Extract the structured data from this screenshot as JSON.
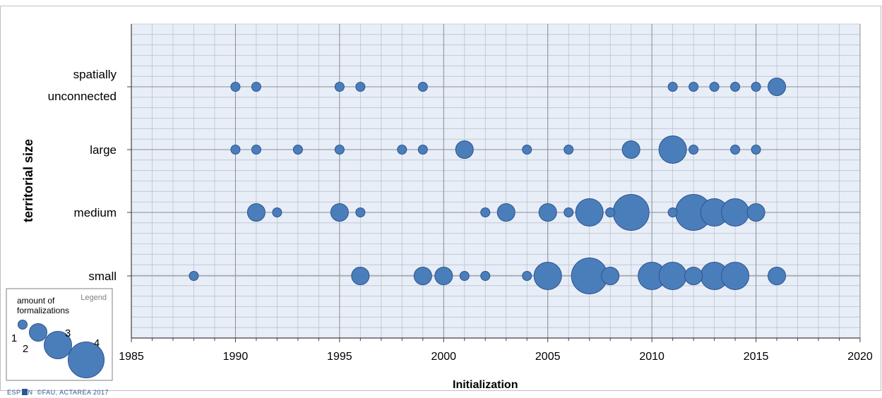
{
  "chart_data": {
    "type": "scatter",
    "subtype": "bubble",
    "xlabel": "Initialization",
    "ylabel": "territorial size",
    "xlim": [
      1985,
      2020
    ],
    "xticks": [
      1985,
      1990,
      1995,
      2000,
      2005,
      2010,
      2015,
      2020
    ],
    "grid": true,
    "categories": [
      "small",
      "medium",
      "large",
      "spatially unconnected"
    ],
    "category_labels": [
      [
        "small"
      ],
      [
        "medium"
      ],
      [
        "large"
      ],
      [
        "spatially",
        "unconnected"
      ]
    ],
    "points": [
      {
        "category": "spatially unconnected",
        "x": 1990,
        "size": 1
      },
      {
        "category": "spatially unconnected",
        "x": 1991,
        "size": 1
      },
      {
        "category": "spatially unconnected",
        "x": 1995,
        "size": 1
      },
      {
        "category": "spatially unconnected",
        "x": 1996,
        "size": 1
      },
      {
        "category": "spatially unconnected",
        "x": 1999,
        "size": 1
      },
      {
        "category": "spatially unconnected",
        "x": 2011,
        "size": 1
      },
      {
        "category": "spatially unconnected",
        "x": 2012,
        "size": 1
      },
      {
        "category": "spatially unconnected",
        "x": 2013,
        "size": 1
      },
      {
        "category": "spatially unconnected",
        "x": 2014,
        "size": 1
      },
      {
        "category": "spatially unconnected",
        "x": 2015,
        "size": 1
      },
      {
        "category": "spatially unconnected",
        "x": 2016,
        "size": 2
      },
      {
        "category": "large",
        "x": 1990,
        "size": 1
      },
      {
        "category": "large",
        "x": 1991,
        "size": 1
      },
      {
        "category": "large",
        "x": 1993,
        "size": 1
      },
      {
        "category": "large",
        "x": 1995,
        "size": 1
      },
      {
        "category": "large",
        "x": 1998,
        "size": 1
      },
      {
        "category": "large",
        "x": 1999,
        "size": 1
      },
      {
        "category": "large",
        "x": 2001,
        "size": 2
      },
      {
        "category": "large",
        "x": 2004,
        "size": 1
      },
      {
        "category": "large",
        "x": 2006,
        "size": 1
      },
      {
        "category": "large",
        "x": 2009,
        "size": 2
      },
      {
        "category": "large",
        "x": 2011,
        "size": 3
      },
      {
        "category": "large",
        "x": 2012,
        "size": 1
      },
      {
        "category": "large",
        "x": 2014,
        "size": 1
      },
      {
        "category": "large",
        "x": 2015,
        "size": 1
      },
      {
        "category": "medium",
        "x": 1991,
        "size": 2
      },
      {
        "category": "medium",
        "x": 1992,
        "size": 1
      },
      {
        "category": "medium",
        "x": 1995,
        "size": 2
      },
      {
        "category": "medium",
        "x": 1996,
        "size": 1
      },
      {
        "category": "medium",
        "x": 2002,
        "size": 1
      },
      {
        "category": "medium",
        "x": 2003,
        "size": 2
      },
      {
        "category": "medium",
        "x": 2005,
        "size": 2
      },
      {
        "category": "medium",
        "x": 2006,
        "size": 1
      },
      {
        "category": "medium",
        "x": 2007,
        "size": 3
      },
      {
        "category": "medium",
        "x": 2008,
        "size": 1
      },
      {
        "category": "medium",
        "x": 2009,
        "size": 4
      },
      {
        "category": "medium",
        "x": 2011,
        "size": 1
      },
      {
        "category": "medium",
        "x": 2012,
        "size": 4
      },
      {
        "category": "medium",
        "x": 2013,
        "size": 3
      },
      {
        "category": "medium",
        "x": 2014,
        "size": 3
      },
      {
        "category": "medium",
        "x": 2015,
        "size": 2
      },
      {
        "category": "small",
        "x": 1988,
        "size": 1
      },
      {
        "category": "small",
        "x": 1996,
        "size": 2
      },
      {
        "category": "small",
        "x": 1999,
        "size": 2
      },
      {
        "category": "small",
        "x": 2000,
        "size": 2
      },
      {
        "category": "small",
        "x": 2001,
        "size": 1
      },
      {
        "category": "small",
        "x": 2002,
        "size": 1
      },
      {
        "category": "small",
        "x": 2004,
        "size": 1
      },
      {
        "category": "small",
        "x": 2005,
        "size": 3
      },
      {
        "category": "small",
        "x": 2007,
        "size": 4
      },
      {
        "category": "small",
        "x": 2008,
        "size": 2
      },
      {
        "category": "small",
        "x": 2010,
        "size": 3
      },
      {
        "category": "small",
        "x": 2011,
        "size": 3
      },
      {
        "category": "small",
        "x": 2012,
        "size": 2
      },
      {
        "category": "small",
        "x": 2013,
        "size": 3
      },
      {
        "category": "small",
        "x": 2014,
        "size": 3
      },
      {
        "category": "small",
        "x": 2016,
        "size": 2
      }
    ],
    "legend": {
      "title": "Legend",
      "label": [
        "amount of",
        "formalizations"
      ],
      "sizes": [
        1,
        2,
        3,
        4
      ],
      "placement": "bottom-left"
    },
    "colors": {
      "bubble_fill": "#4a7ebb",
      "bubble_stroke": "#2f528f",
      "plot_background": "#e8eef7",
      "grid": "#a6a6a6"
    }
  },
  "credit": {
    "espon_pre": "ESP",
    "espon_post": "N",
    "copyright": "©FAU, ACTAREA 2017"
  }
}
